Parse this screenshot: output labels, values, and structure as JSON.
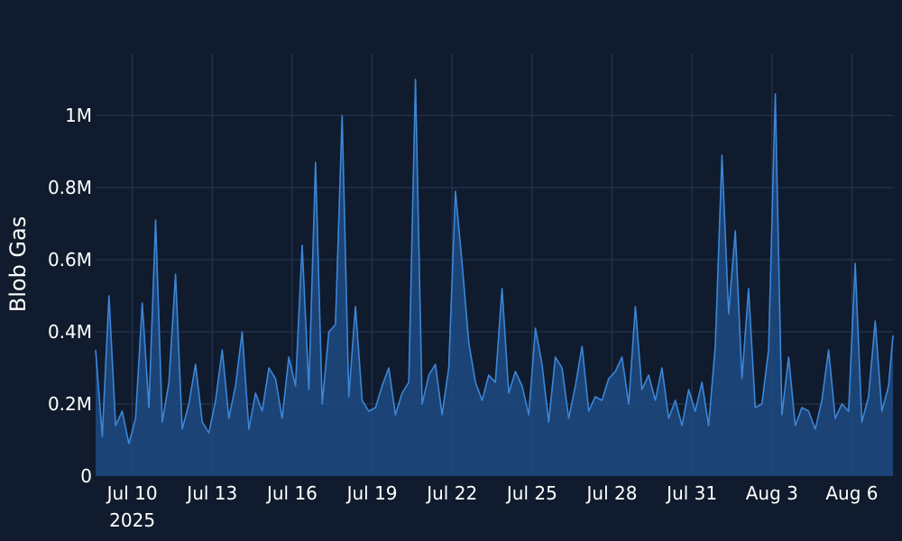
{
  "chart_data": {
    "type": "area",
    "ylabel": "Blob Gas",
    "xlabel": "",
    "title": "",
    "x_range": [
      "2025-07-08T15:00",
      "2025-08-07T13:00"
    ],
    "ylim": [
      0,
      1170000
    ],
    "grid": true,
    "colors": {
      "background": "#101b2d",
      "line": "#3b86d8",
      "fill": "#1e4a82",
      "grid": "#2a3a5c",
      "text": "#ffffff"
    },
    "x_ticks": [
      {
        "date": "2025-07-10",
        "label": "Jul 10",
        "sublabel": "2025"
      },
      {
        "date": "2025-07-13",
        "label": "Jul 13",
        "sublabel": ""
      },
      {
        "date": "2025-07-16",
        "label": "Jul 16",
        "sublabel": ""
      },
      {
        "date": "2025-07-19",
        "label": "Jul 19",
        "sublabel": ""
      },
      {
        "date": "2025-07-22",
        "label": "Jul 22",
        "sublabel": ""
      },
      {
        "date": "2025-07-25",
        "label": "Jul 25",
        "sublabel": ""
      },
      {
        "date": "2025-07-28",
        "label": "Jul 28",
        "sublabel": ""
      },
      {
        "date": "2025-07-31",
        "label": "Jul 31",
        "sublabel": ""
      },
      {
        "date": "2025-08-03",
        "label": "Aug 3",
        "sublabel": ""
      },
      {
        "date": "2025-08-06",
        "label": "Aug 6",
        "sublabel": ""
      }
    ],
    "y_ticks": [
      {
        "value": 0,
        "label": "0"
      },
      {
        "value": 200000,
        "label": "0.2M"
      },
      {
        "value": 400000,
        "label": "0.4M"
      },
      {
        "value": 600000,
        "label": "0.6M"
      },
      {
        "value": 800000,
        "label": "0.8M"
      },
      {
        "value": 1000000,
        "label": "1M"
      }
    ],
    "x": [
      "2025-07-08T15:00",
      "2025-07-08T21:00",
      "2025-07-09T03:00",
      "2025-07-09T09:00",
      "2025-07-09T15:00",
      "2025-07-09T21:00",
      "2025-07-10T03:00",
      "2025-07-10T09:00",
      "2025-07-10T15:00",
      "2025-07-10T21:00",
      "2025-07-11T03:00",
      "2025-07-11T09:00",
      "2025-07-11T15:00",
      "2025-07-11T21:00",
      "2025-07-12T03:00",
      "2025-07-12T09:00",
      "2025-07-12T15:00",
      "2025-07-12T21:00",
      "2025-07-13T03:00",
      "2025-07-13T09:00",
      "2025-07-13T15:00",
      "2025-07-13T21:00",
      "2025-07-14T03:00",
      "2025-07-14T09:00",
      "2025-07-14T15:00",
      "2025-07-14T21:00",
      "2025-07-15T03:00",
      "2025-07-15T09:00",
      "2025-07-15T15:00",
      "2025-07-15T21:00",
      "2025-07-16T03:00",
      "2025-07-16T09:00",
      "2025-07-16T15:00",
      "2025-07-16T21:00",
      "2025-07-17T03:00",
      "2025-07-17T09:00",
      "2025-07-17T15:00",
      "2025-07-17T21:00",
      "2025-07-18T03:00",
      "2025-07-18T09:00",
      "2025-07-18T15:00",
      "2025-07-18T21:00",
      "2025-07-19T03:00",
      "2025-07-19T09:00",
      "2025-07-19T15:00",
      "2025-07-19T21:00",
      "2025-07-20T03:00",
      "2025-07-20T09:00",
      "2025-07-20T15:00",
      "2025-07-20T21:00",
      "2025-07-21T03:00",
      "2025-07-21T09:00",
      "2025-07-21T15:00",
      "2025-07-21T21:00",
      "2025-07-22T03:00",
      "2025-07-22T09:00",
      "2025-07-22T15:00",
      "2025-07-22T21:00",
      "2025-07-23T03:00",
      "2025-07-23T09:00",
      "2025-07-23T15:00",
      "2025-07-23T21:00",
      "2025-07-24T03:00",
      "2025-07-24T09:00",
      "2025-07-24T15:00",
      "2025-07-24T21:00",
      "2025-07-25T03:00",
      "2025-07-25T09:00",
      "2025-07-25T15:00",
      "2025-07-25T21:00",
      "2025-07-26T03:00",
      "2025-07-26T09:00",
      "2025-07-26T15:00",
      "2025-07-26T21:00",
      "2025-07-27T03:00",
      "2025-07-27T09:00",
      "2025-07-27T15:00",
      "2025-07-27T21:00",
      "2025-07-28T03:00",
      "2025-07-28T09:00",
      "2025-07-28T15:00",
      "2025-07-28T21:00",
      "2025-07-29T03:00",
      "2025-07-29T09:00",
      "2025-07-29T15:00",
      "2025-07-29T21:00",
      "2025-07-30T03:00",
      "2025-07-30T09:00",
      "2025-07-30T15:00",
      "2025-07-30T21:00",
      "2025-07-31T03:00",
      "2025-07-31T09:00",
      "2025-07-31T15:00",
      "2025-07-31T21:00",
      "2025-08-01T03:00",
      "2025-08-01T09:00",
      "2025-08-01T15:00",
      "2025-08-01T21:00",
      "2025-08-02T03:00",
      "2025-08-02T09:00",
      "2025-08-02T15:00",
      "2025-08-02T21:00",
      "2025-08-03T03:00",
      "2025-08-03T09:00",
      "2025-08-03T15:00",
      "2025-08-03T21:00",
      "2025-08-04T03:00",
      "2025-08-04T09:00",
      "2025-08-04T15:00",
      "2025-08-04T21:00",
      "2025-08-05T03:00",
      "2025-08-05T09:00",
      "2025-08-05T15:00",
      "2025-08-05T21:00",
      "2025-08-06T03:00",
      "2025-08-06T09:00",
      "2025-08-06T15:00",
      "2025-08-06T21:00",
      "2025-08-07T03:00",
      "2025-08-07T09:00",
      "2025-08-07T13:00"
    ],
    "series": [
      {
        "values": [
          350000,
          110000,
          500000,
          140000,
          180000,
          90000,
          160000,
          480000,
          190000,
          710000,
          150000,
          260000,
          560000,
          130000,
          200000,
          310000,
          150000,
          120000,
          210000,
          350000,
          160000,
          250000,
          400000,
          130000,
          230000,
          180000,
          300000,
          270000,
          160000,
          330000,
          250000,
          640000,
          240000,
          870000,
          200000,
          400000,
          420000,
          1000000,
          220000,
          470000,
          210000,
          180000,
          190000,
          250000,
          300000,
          170000,
          230000,
          260000,
          1100000,
          200000,
          280000,
          310000,
          170000,
          300000,
          790000,
          590000,
          370000,
          260000,
          210000,
          280000,
          260000,
          520000,
          230000,
          290000,
          250000,
          170000,
          410000,
          310000,
          150000,
          330000,
          300000,
          160000,
          250000,
          360000,
          180000,
          220000,
          210000,
          270000,
          290000,
          330000,
          200000,
          470000,
          240000,
          280000,
          210000,
          300000,
          160000,
          210000,
          140000,
          240000,
          180000,
          260000,
          140000,
          360000,
          890000,
          450000,
          680000,
          270000,
          520000,
          190000,
          200000,
          350000,
          1060000,
          170000,
          330000,
          140000,
          190000,
          180000,
          130000,
          210000,
          350000,
          160000,
          200000,
          180000,
          590000,
          150000,
          220000,
          430000,
          180000,
          250000,
          390000
        ]
      }
    ]
  }
}
